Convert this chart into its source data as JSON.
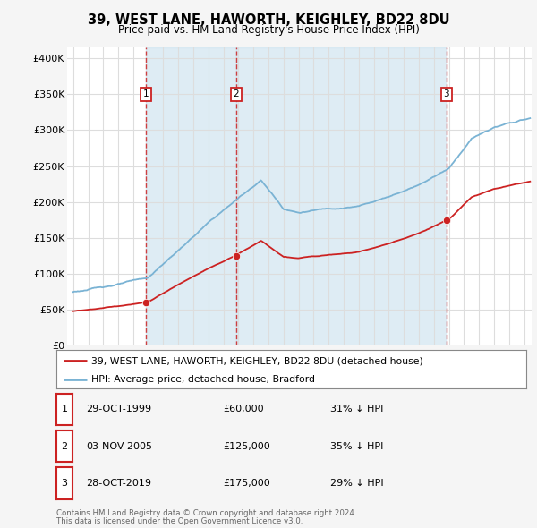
{
  "title": "39, WEST LANE, HAWORTH, KEIGHLEY, BD22 8DU",
  "subtitle": "Price paid vs. HM Land Registry's House Price Index (HPI)",
  "ylabel_ticks": [
    "£0",
    "£50K",
    "£100K",
    "£150K",
    "£200K",
    "£250K",
    "£300K",
    "£350K",
    "£400K"
  ],
  "ytick_values": [
    0,
    50000,
    100000,
    150000,
    200000,
    250000,
    300000,
    350000,
    400000
  ],
  "ylim": [
    0,
    415000
  ],
  "xlim_start": 1994.6,
  "xlim_end": 2025.5,
  "hpi_color": "#7ab3d4",
  "price_color": "#cc2222",
  "vline_color": "#cc2222",
  "shade_color": "#d0e4f0",
  "sale_dates": [
    1999.83,
    2005.84,
    2019.83
  ],
  "sale_prices": [
    60000,
    125000,
    175000
  ],
  "sale_labels": [
    "1",
    "2",
    "3"
  ],
  "legend_line1": "39, WEST LANE, HAWORTH, KEIGHLEY, BD22 8DU (detached house)",
  "legend_line2": "HPI: Average price, detached house, Bradford",
  "table_rows": [
    {
      "num": "1",
      "date": "29-OCT-1999",
      "price": "£60,000",
      "hpi": "31% ↓ HPI"
    },
    {
      "num": "2",
      "date": "03-NOV-2005",
      "price": "£125,000",
      "hpi": "35% ↓ HPI"
    },
    {
      "num": "3",
      "date": "28-OCT-2019",
      "price": "£175,000",
      "hpi": "29% ↓ HPI"
    }
  ],
  "footnote1": "Contains HM Land Registry data © Crown copyright and database right 2024.",
  "footnote2": "This data is licensed under the Open Government Licence v3.0.",
  "bg_color": "#f5f5f5",
  "plot_bg_color": "#ffffff",
  "grid_color": "#dddddd"
}
